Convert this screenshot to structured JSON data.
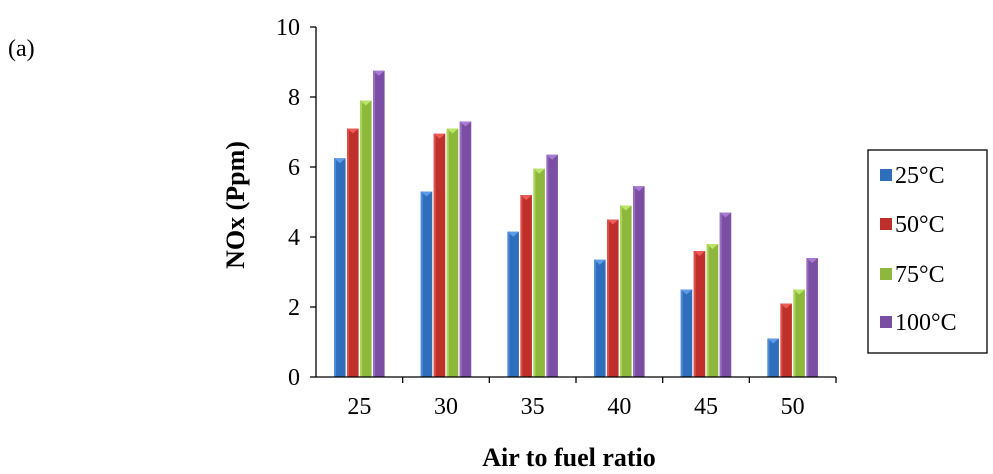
{
  "panel_label": "(a)",
  "chart_data": {
    "type": "bar",
    "title": "",
    "xlabel": "Air to fuel ratio",
    "ylabel": "NOx (Ppm)",
    "categories": [
      "25",
      "30",
      "35",
      "40",
      "45",
      "50"
    ],
    "ylim": [
      0,
      10
    ],
    "yticks": [
      "0",
      "2",
      "4",
      "6",
      "8",
      "10"
    ],
    "grid": false,
    "legend_position": "right",
    "series": [
      {
        "name": "25°C",
        "color": "#2F6EBA",
        "values": [
          6.25,
          5.3,
          4.15,
          3.35,
          2.5,
          1.1
        ]
      },
      {
        "name": "50°C",
        "color": "#C0302A",
        "values": [
          7.1,
          6.95,
          5.2,
          4.5,
          3.6,
          2.1
        ]
      },
      {
        "name": "75°C",
        "color": "#8DB83C",
        "values": [
          7.9,
          7.1,
          5.95,
          4.9,
          3.8,
          2.5
        ]
      },
      {
        "name": "100°C",
        "color": "#7A4FA3",
        "values": [
          8.75,
          7.3,
          6.35,
          5.45,
          4.7,
          3.4
        ]
      }
    ]
  }
}
